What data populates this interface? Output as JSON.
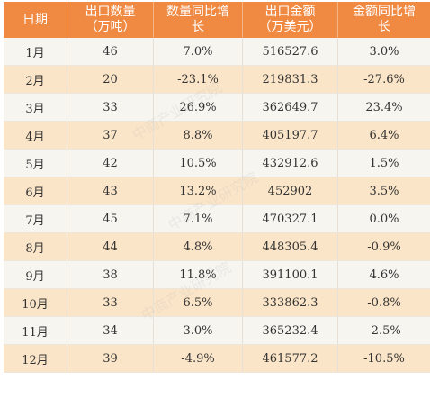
{
  "table": {
    "headers": [
      {
        "line1": "日期",
        "line2": ""
      },
      {
        "line1": "出口数量",
        "line2": "（万吨）"
      },
      {
        "line1": "数量同比增",
        "line2": "长"
      },
      {
        "line1": "出口金额",
        "line2": "（万美元）"
      },
      {
        "line1": "金额同比增",
        "line2": "长"
      }
    ],
    "rows": [
      {
        "date": "1月",
        "qty": "46",
        "qty_growth": "7.0%",
        "amount": "516527.6",
        "amount_growth": "3.0%"
      },
      {
        "date": "2月",
        "qty": "20",
        "qty_growth": "-23.1%",
        "amount": "219831.3",
        "amount_growth": "-27.6%"
      },
      {
        "date": "3月",
        "qty": "33",
        "qty_growth": "26.9%",
        "amount": "362649.7",
        "amount_growth": "23.4%"
      },
      {
        "date": "4月",
        "qty": "37",
        "qty_growth": "8.8%",
        "amount": "405197.7",
        "amount_growth": "6.4%"
      },
      {
        "date": "5月",
        "qty": "42",
        "qty_growth": "10.5%",
        "amount": "432912.6",
        "amount_growth": "1.5%"
      },
      {
        "date": "6月",
        "qty": "43",
        "qty_growth": "13.2%",
        "amount": "452902",
        "amount_growth": "3.5%"
      },
      {
        "date": "7月",
        "qty": "45",
        "qty_growth": "7.1%",
        "amount": "470327.1",
        "amount_growth": "0.0%"
      },
      {
        "date": "8月",
        "qty": "44",
        "qty_growth": "4.8%",
        "amount": "448305.4",
        "amount_growth": "-0.9%"
      },
      {
        "date": "9月",
        "qty": "38",
        "qty_growth": "11.8%",
        "amount": "391100.1",
        "amount_growth": "4.6%"
      },
      {
        "date": "10月",
        "qty": "33",
        "qty_growth": "6.5%",
        "amount": "333862.3",
        "amount_growth": "-0.8%"
      },
      {
        "date": "11月",
        "qty": "34",
        "qty_growth": "3.0%",
        "amount": "365232.4",
        "amount_growth": "-2.5%"
      },
      {
        "date": "12月",
        "qty": "39",
        "qty_growth": "-4.9%",
        "amount": "461577.2",
        "amount_growth": "-10.5%"
      }
    ]
  },
  "colors": {
    "header_bg": "#f08a43",
    "header_text": "#ffffff",
    "row_light": "#f7f5f0",
    "row_tan": "#fbe5c8",
    "body_text": "#333333"
  },
  "watermark": "中商产业研究院"
}
